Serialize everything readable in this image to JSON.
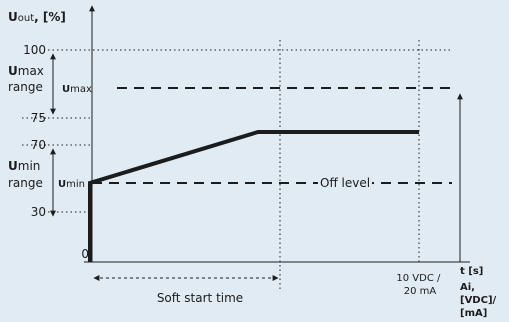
{
  "colors": {
    "background": "#e1ebf3",
    "ink": "#1c1c1c"
  },
  "y_axis": {
    "title_symbol": "U",
    "title_sub": "out",
    "title_unit": ", [%]"
  },
  "y_ticks": [
    "100",
    "75",
    "70",
    "30",
    "0"
  ],
  "ranges": {
    "umax": {
      "sym": "U",
      "sub": "max",
      "word": "range"
    },
    "umin": {
      "sym": "U",
      "sub": "min",
      "word": "range"
    }
  },
  "level_labels": {
    "umax": {
      "sym": "U",
      "sub": "max"
    },
    "umin": {
      "sym": "U",
      "sub": "min"
    },
    "off": "Off level"
  },
  "x_axis": {
    "t_label": "t [s]",
    "ai_label": [
      "Ai,",
      "[VDC]/",
      "[mA]"
    ],
    "end_label": [
      "10 VDC /",
      "20 mA"
    ]
  },
  "soft_start_label": "Soft start time"
}
